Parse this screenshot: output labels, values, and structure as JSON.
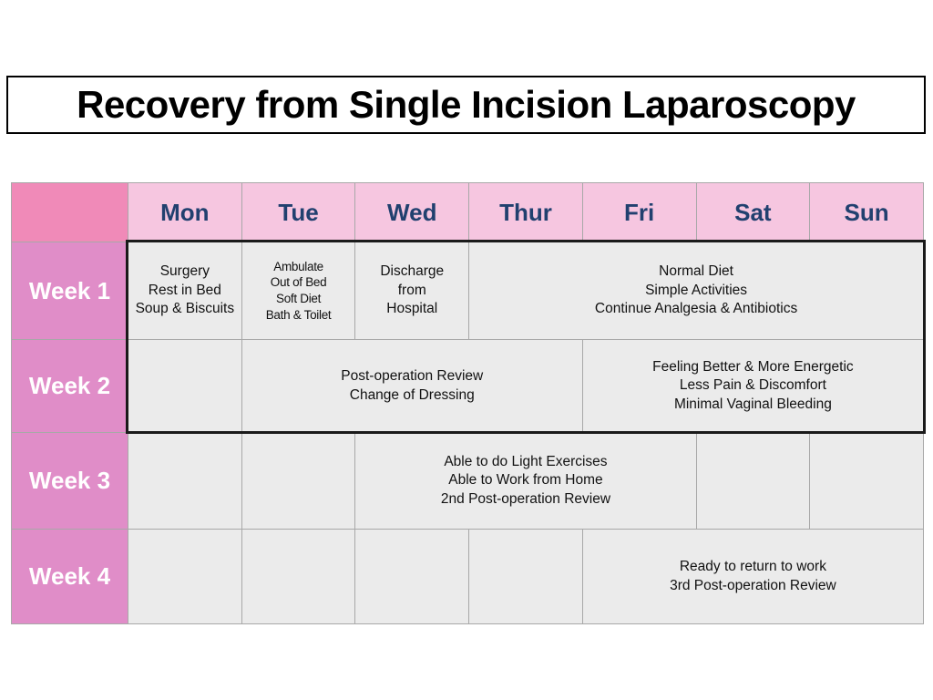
{
  "title": "Recovery from Single Incision Laparoscopy",
  "table": {
    "days": [
      "Mon",
      "Tue",
      "Wed",
      "Thur",
      "Fri",
      "Sat",
      "Sun"
    ],
    "rows": [
      {
        "label": "Week 1",
        "cells": [
          {
            "text": "Surgery\nRest in Bed\nSoup & Biscuits"
          },
          {
            "text": "Ambulate\nOut of Bed\nSoft Diet\nBath & Toilet"
          },
          {
            "text": "Discharge\nfrom\nHospital"
          },
          {
            "text": "Normal Diet\nSimple Activities\nContinue Analgesia & Antibiotics"
          }
        ]
      },
      {
        "label": "Week 2",
        "cells": [
          {
            "text": ""
          },
          {
            "text": "Post-operation Review\nChange of Dressing"
          },
          {
            "text": "Feeling Better & More Energetic\nLess Pain & Discomfort\nMinimal Vaginal Bleeding"
          }
        ]
      },
      {
        "label": "Week 3",
        "cells": [
          {
            "text": ""
          },
          {
            "text": ""
          },
          {
            "text": "Able to do Light Exercises\nAble to Work from Home\n2nd Post-operation Review"
          },
          {
            "text": ""
          },
          {
            "text": ""
          }
        ]
      },
      {
        "label": "Week 4",
        "cells": [
          {
            "text": ""
          },
          {
            "text": ""
          },
          {
            "text": ""
          },
          {
            "text": ""
          },
          {
            "text": "Ready to return to work\n3rd Post-operation Review"
          }
        ]
      }
    ]
  },
  "colors": {
    "corner_pink": "#f08ab8",
    "day_header_pink": "#f6c6e0",
    "week_label_pink": "#e08dc8",
    "cell_gray": "#ebebeb",
    "day_text_navy": "#21406f",
    "grid_line_gray": "#a8a8a8",
    "highlight_border_black": "#1a1a1a"
  }
}
